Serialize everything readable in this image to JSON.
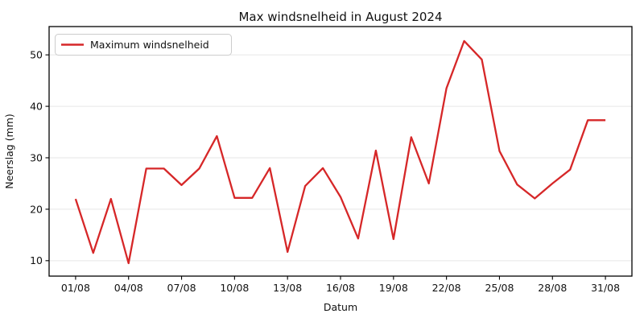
{
  "chart_data": {
    "type": "line",
    "title": "Max windsnelheid in August 2024",
    "xlabel": "Datum",
    "ylabel": "Neerslag (mm)",
    "legend": [
      "Maximum windsnelheid"
    ],
    "legend_position": "upper left",
    "grid": "horizontal",
    "line_color": "#d62728",
    "gridline_color": "#e6e6e6",
    "x_labels": [
      "01/08",
      "02/08",
      "03/08",
      "04/08",
      "05/08",
      "06/08",
      "07/08",
      "08/08",
      "09/08",
      "10/08",
      "11/08",
      "12/08",
      "13/08",
      "14/08",
      "15/08",
      "16/08",
      "17/08",
      "18/08",
      "19/08",
      "20/08",
      "21/08",
      "22/08",
      "23/08",
      "24/08",
      "25/08",
      "26/08",
      "27/08",
      "28/08",
      "29/08",
      "30/08",
      "31/08"
    ],
    "series": [
      {
        "name": "Maximum windsnelheid",
        "values": [
          22.0,
          11.5,
          22.0,
          9.5,
          27.9,
          27.9,
          24.7,
          27.9,
          34.2,
          22.2,
          22.2,
          28.0,
          11.7,
          24.5,
          28.0,
          22.4,
          14.3,
          31.4,
          14.2,
          34.0,
          25.0,
          43.5,
          52.7,
          49.1,
          31.3,
          24.8,
          22.1,
          25.0,
          27.7,
          37.3,
          37.3
        ]
      }
    ],
    "x_ticks": [
      "01/08",
      "04/08",
      "07/08",
      "10/08",
      "13/08",
      "16/08",
      "19/08",
      "22/08",
      "25/08",
      "28/08",
      "31/08"
    ],
    "y_ticks": [
      10,
      20,
      30,
      40,
      50
    ],
    "ylim": [
      7.0,
      55.5
    ]
  }
}
